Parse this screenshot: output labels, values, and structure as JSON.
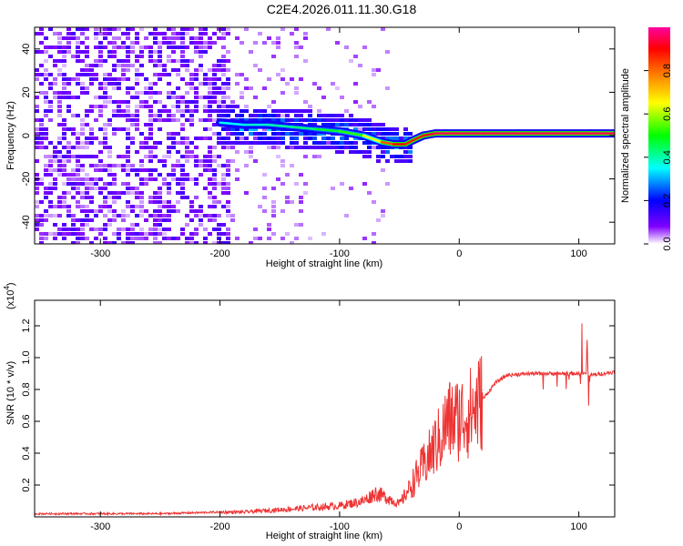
{
  "title": "C2E4.2026.011.11.30.G18",
  "chart_data": [
    {
      "type": "heatmap",
      "xlabel": "Height of straight line (km)",
      "ylabel": "Frequency (Hz)",
      "xlim": [
        -355,
        130
      ],
      "ylim": [
        -50,
        50
      ],
      "x_ticks": [
        "-300",
        "-200",
        "-100",
        "0",
        "100"
      ],
      "y_ticks": [
        "40",
        "20",
        "0",
        "-20",
        "-40"
      ],
      "colorbar": {
        "label": "Normalized spectral amplitude",
        "range": [
          0,
          1
        ],
        "ticks": [
          "0.0",
          "0.2",
          "0.4",
          "0.6",
          "0.8"
        ],
        "colors": [
          "#ffffff",
          "#8000ff",
          "#0000ff",
          "#00ffff",
          "#00ff00",
          "#ffff00",
          "#ff8000",
          "#ff0000",
          "#ff00a0"
        ]
      },
      "ridge": {
        "x": [
          -200,
          -180,
          -160,
          -140,
          -120,
          -100,
          -80,
          -65,
          -55,
          -45,
          -38,
          -30,
          -20,
          -10,
          0,
          20,
          50,
          80,
          110,
          130
        ],
        "y": [
          6,
          5,
          5,
          4,
          3,
          2,
          0,
          -3,
          -4,
          -4,
          -2,
          0,
          1,
          1,
          1,
          1,
          1,
          1,
          1,
          1
        ],
        "amplitude": [
          0.35,
          0.35,
          0.4,
          0.4,
          0.45,
          0.5,
          0.55,
          0.75,
          0.9,
          0.9,
          0.85,
          0.9,
          0.95,
          0.95,
          0.95,
          0.95,
          0.95,
          0.95,
          0.95,
          0.95
        ]
      }
    },
    {
      "type": "line",
      "xlabel": "Height of straight line (km)",
      "ylabel": "SNR (10 * v/v)",
      "y_scale_label": "(x10",
      "y_scale_exp": "4",
      "xlim": [
        -355,
        130
      ],
      "ylim": [
        0,
        1.36
      ],
      "x_ticks": [
        "-300",
        "-200",
        "-100",
        "0",
        "100"
      ],
      "y_ticks": [
        "0.2",
        "0.4",
        "0.6",
        "0.8",
        "1.0",
        "1.2"
      ],
      "series": [
        {
          "color": "#ee3333",
          "x": [
            -355,
            -300,
            -250,
            -200,
            -180,
            -160,
            -140,
            -120,
            -100,
            -80,
            -70,
            -60,
            -50,
            -40,
            -30,
            -25,
            -20,
            -15,
            -10,
            0,
            10,
            20,
            30,
            40,
            60,
            80,
            100,
            105,
            110,
            120,
            130
          ],
          "y": [
            0.02,
            0.02,
            0.02,
            0.03,
            0.03,
            0.04,
            0.05,
            0.06,
            0.07,
            0.1,
            0.15,
            0.12,
            0.08,
            0.2,
            0.32,
            0.38,
            0.45,
            0.5,
            0.6,
            0.62,
            0.66,
            0.74,
            0.84,
            0.89,
            0.9,
            0.9,
            0.9,
            0.9,
            0.89,
            0.9,
            0.91
          ]
        }
      ]
    }
  ]
}
